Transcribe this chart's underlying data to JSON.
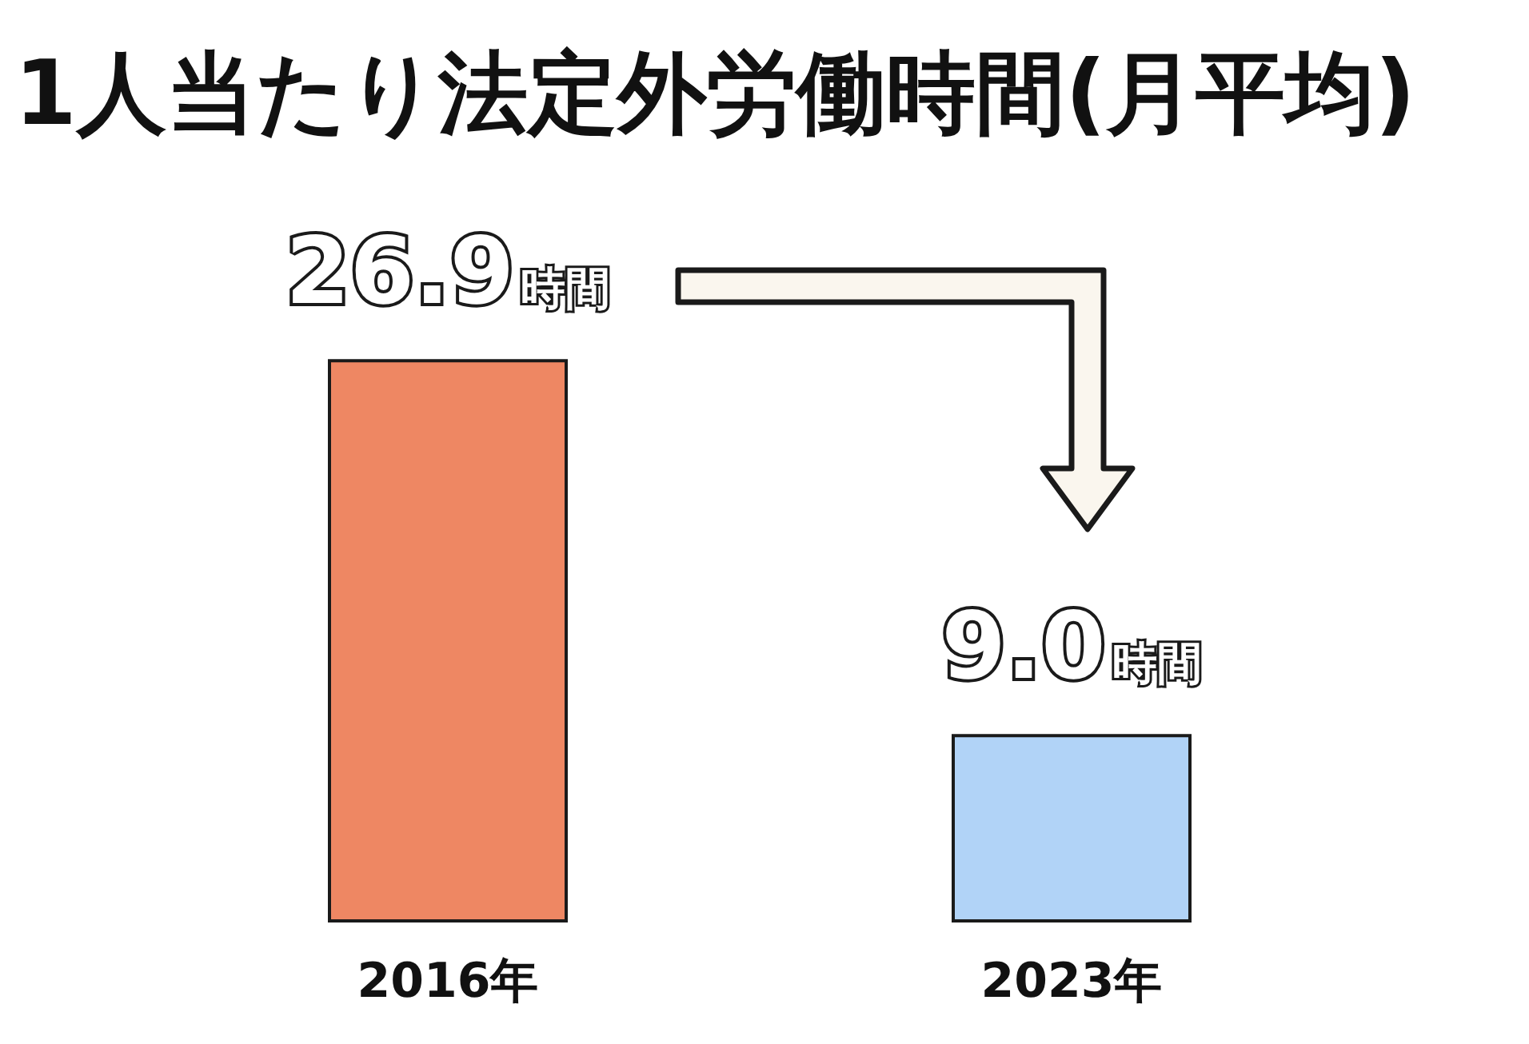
{
  "chart_data": {
    "type": "bar",
    "title": "1人当たり法定外労働時間(月平均)",
    "categories": [
      "2016年",
      "2023年"
    ],
    "values": [
      26.9,
      9.0
    ],
    "colors": [
      "#ee8763",
      "#b1d3f7"
    ],
    "value_labels": [
      "26.9時間",
      "9.0時間"
    ]
  }
}
